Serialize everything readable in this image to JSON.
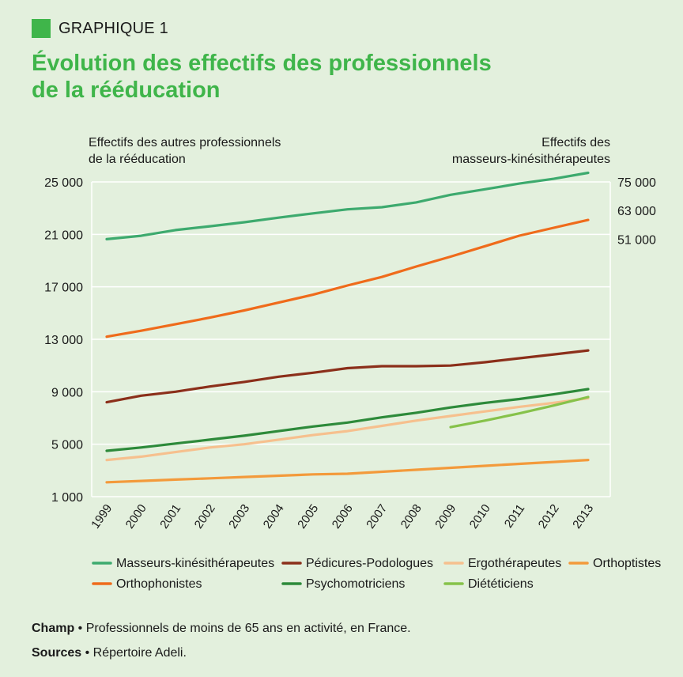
{
  "header": {
    "label": "GRAPHIQUE 1",
    "accent": "#3fb54a"
  },
  "title_line1": "Évolution des effectifs des professionnels",
  "title_line2": "de la rééducation",
  "axis_left_title_line1": "Effectifs des autres professionnels",
  "axis_left_title_line2": "de la rééducation",
  "axis_right_title_line1": "Effectifs des",
  "axis_right_title_line2": "masseurs-kinésithérapeutes",
  "footer": {
    "champ_label": "Champ",
    "champ_text": " • Professionnels de moins de 65 ans en activité, en France.",
    "sources_label": "Sources",
    "sources_text": " • Répertoire Adeli."
  },
  "chart_data": {
    "type": "line",
    "x": [
      "1999",
      "2000",
      "2001",
      "2002",
      "2003",
      "2004",
      "2005",
      "2006",
      "2007",
      "2008",
      "2009",
      "2010",
      "2011",
      "2012",
      "2013"
    ],
    "left_axis": {
      "ticks": [
        1000,
        5000,
        9000,
        13000,
        17000,
        21000,
        25000
      ],
      "tick_labels": [
        "1 000",
        "5 000",
        "9 000",
        "13 000",
        "17 000",
        "21 000",
        "25 000"
      ],
      "ylim": [
        1000,
        25000
      ]
    },
    "right_axis": {
      "ticks": [
        51000,
        63000,
        75000
      ],
      "tick_labels": [
        "51 000",
        "63 000",
        "75 000"
      ],
      "ylim": [
        -57000,
        75000
      ]
    },
    "grid": "horizontal",
    "legend_position": "bottom",
    "series": [
      {
        "name": "Masseurs-kinésithérapeutes",
        "axis": "right",
        "color": "#3daa6e",
        "x": [
          "1999",
          "2000",
          "2001",
          "2002",
          "2003",
          "2004",
          "2005",
          "2006",
          "2007",
          "2008",
          "2009",
          "2010",
          "2011",
          "2012",
          "2013"
        ],
        "values": [
          51000,
          52400,
          54800,
          56400,
          58100,
          60000,
          61800,
          63500,
          64400,
          66400,
          69600,
          71900,
          74300,
          76300,
          78800
        ]
      },
      {
        "name": "Pédicures-Podologues",
        "axis": "left",
        "color": "#8b2f1a",
        "x": [
          "1999",
          "2000",
          "2001",
          "2002",
          "2003",
          "2004",
          "2005",
          "2006",
          "2007",
          "2008",
          "2009",
          "2010",
          "2011",
          "2012",
          "2013"
        ],
        "values": [
          8200,
          8700,
          9000,
          9400,
          9750,
          10150,
          10450,
          10800,
          10950,
          10950,
          11000,
          11250,
          11550,
          11850,
          12150
        ]
      },
      {
        "name": "Ergothérapeutes",
        "axis": "left",
        "color": "#f6c08e",
        "x": [
          "1999",
          "2000",
          "2001",
          "2002",
          "2003",
          "2004",
          "2005",
          "2006",
          "2007",
          "2008",
          "2009",
          "2010",
          "2011",
          "2012",
          "2013"
        ],
        "values": [
          3800,
          4050,
          4400,
          4750,
          5000,
          5350,
          5700,
          6000,
          6400,
          6800,
          7150,
          7500,
          7850,
          8150,
          8500
        ]
      },
      {
        "name": "Orthoptistes",
        "axis": "left",
        "color": "#f39a3b",
        "x": [
          "1999",
          "2000",
          "2001",
          "2002",
          "2003",
          "2004",
          "2005",
          "2006",
          "2007",
          "2008",
          "2009",
          "2010",
          "2011",
          "2012",
          "2013"
        ],
        "values": [
          2100,
          2200,
          2300,
          2400,
          2500,
          2600,
          2700,
          2750,
          2900,
          3050,
          3200,
          3350,
          3500,
          3650,
          3800
        ]
      },
      {
        "name": "Orthophonistes",
        "axis": "left",
        "color": "#ef6b1b",
        "x": [
          "1999",
          "2000",
          "2001",
          "2002",
          "2003",
          "2004",
          "2005",
          "2006",
          "2007",
          "2008",
          "2009",
          "2010",
          "2011",
          "2012",
          "2013"
        ],
        "values": [
          13200,
          13650,
          14150,
          14650,
          15200,
          15800,
          16400,
          17100,
          17750,
          18550,
          19300,
          20100,
          20900,
          21500,
          22100
        ]
      },
      {
        "name": "Psychomotriciens",
        "axis": "left",
        "color": "#2d8a3a",
        "x": [
          "1999",
          "2000",
          "2001",
          "2002",
          "2003",
          "2004",
          "2005",
          "2006",
          "2007",
          "2008",
          "2009",
          "2010",
          "2011",
          "2012",
          "2013"
        ],
        "values": [
          4500,
          4750,
          5050,
          5350,
          5650,
          6000,
          6350,
          6650,
          7050,
          7400,
          7800,
          8150,
          8450,
          8800,
          9200
        ]
      },
      {
        "name": "Diététiciens",
        "axis": "left",
        "color": "#86c24a",
        "x": [
          "2009",
          "2010",
          "2011",
          "2012",
          "2013"
        ],
        "values": [
          6300,
          6800,
          7350,
          7950,
          8600
        ]
      }
    ],
    "legend_rows": [
      [
        "Masseurs-kinésithérapeutes",
        "Pédicures-Podologues",
        "Ergothérapeutes",
        "Orthoptistes"
      ],
      [
        "Orthophonistes",
        "Psychomotriciens",
        "Diététiciens"
      ]
    ]
  }
}
